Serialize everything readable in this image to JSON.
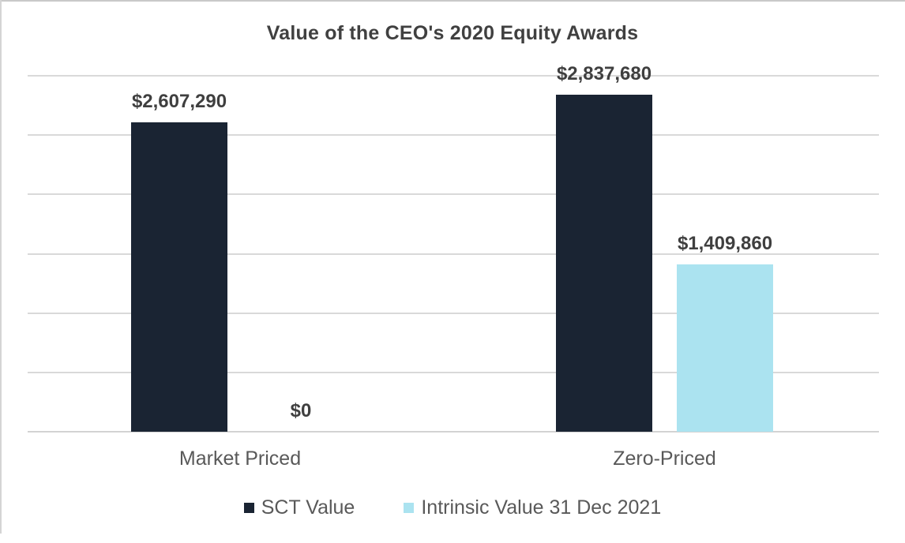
{
  "chart_data": {
    "type": "bar",
    "title": "Value of the CEO's 2020 Equity Awards",
    "categories": [
      "Market Priced",
      "Zero-Priced"
    ],
    "series": [
      {
        "name": "SCT Value",
        "color": "#1a2433",
        "values": [
          2607290,
          2837680
        ],
        "labels": [
          "$2,607,290",
          "$2,837,680"
        ]
      },
      {
        "name": "Intrinsic Value 31 Dec 2021",
        "color": "#abe3f0",
        "values": [
          0,
          1409860
        ],
        "labels": [
          "$0",
          "$1,409,860"
        ]
      }
    ],
    "xlabel": "",
    "ylabel": "",
    "ylim": [
      0,
      3000000
    ],
    "gridline_step": 500000,
    "grid": "on",
    "axis_tick_labels": "hidden",
    "legend_position": "bottom",
    "gridline_color": "#d9d9d9",
    "title_color": "#404040",
    "label_color": "#3f3f3f",
    "category_label_color": "#595959"
  }
}
